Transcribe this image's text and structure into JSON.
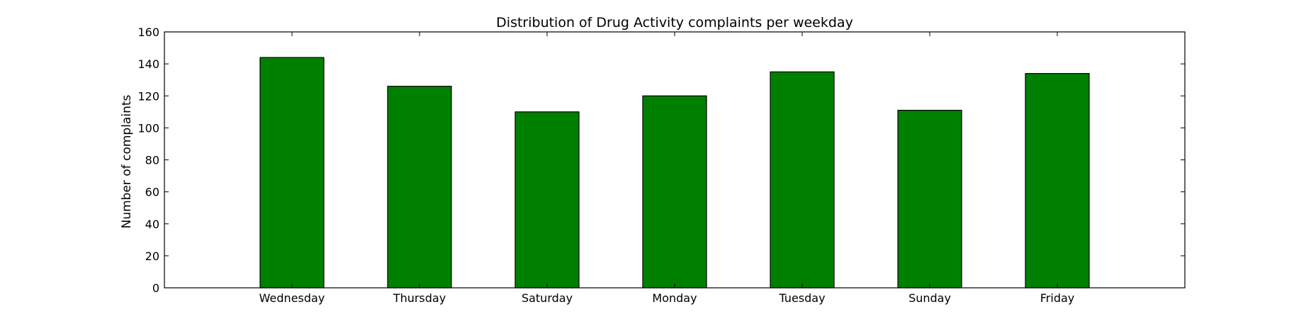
{
  "chart_data": {
    "type": "bar",
    "title": "Distribution of  Drug Activity complaints per weekday",
    "xlabel": "",
    "ylabel": "Number of complaints",
    "categories": [
      "Wednesday",
      "Thursday",
      "Saturday",
      "Monday",
      "Tuesday",
      "Sunday",
      "Friday"
    ],
    "values": [
      144,
      126,
      110,
      120,
      135,
      111,
      134
    ],
    "ylim": [
      0,
      160
    ],
    "yticks": [
      0,
      20,
      40,
      60,
      80,
      100,
      120,
      140,
      160
    ],
    "grid": false,
    "legend": "none"
  },
  "colors": {
    "bar_fill": "#008000",
    "bar_edge": "#000000",
    "axes": "#000000",
    "background": "#ffffff"
  }
}
